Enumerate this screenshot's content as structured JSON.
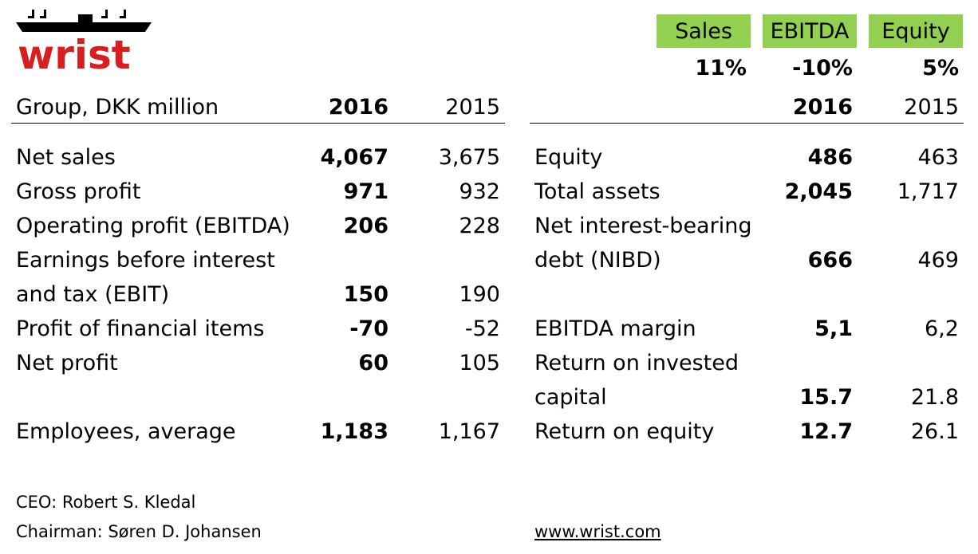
{
  "logo": {
    "text": "wrist",
    "color": "#d81e1e"
  },
  "kpis": [
    {
      "label": "Sales",
      "value": "11%"
    },
    {
      "label": "EBITDA",
      "value": "-10%"
    },
    {
      "label": "Equity",
      "value": "5%"
    }
  ],
  "kpi_color": "#92d050",
  "left_table": {
    "header": {
      "label": "Group, DKK million",
      "y2016": "2016",
      "y2015": "2015"
    },
    "rows": [
      {
        "label": "Net sales",
        "v2016": "4,067",
        "v2015": "3,675"
      },
      {
        "label": "Gross profit",
        "v2016": "971",
        "v2015": "932"
      },
      {
        "label": "Operating profit (EBITDA)",
        "v2016": "206",
        "v2015": "228"
      },
      {
        "label_line1": "Earnings before interest",
        "label_line2": "and tax (EBIT)",
        "v2016": "150",
        "v2015": "190"
      },
      {
        "label": "Profit of financial items",
        "v2016": "-70",
        "v2015": "-52"
      },
      {
        "label": "Net profit",
        "v2016": "60",
        "v2015": "105"
      },
      {
        "label": "Employees, average",
        "v2016": "1,183",
        "v2015": "1,167"
      }
    ]
  },
  "right_table": {
    "header": {
      "y2016": "2016",
      "y2015": "2015"
    },
    "rows": [
      {
        "label": "Equity",
        "v2016": "486",
        "v2015": "463"
      },
      {
        "label": "Total assets",
        "v2016": "2,045",
        "v2015": "1,717"
      },
      {
        "label_line1": "Net interest-bearing",
        "label_line2": "debt (NIBD)",
        "v2016": "666",
        "v2015": "469"
      },
      {
        "label": "EBITDA margin",
        "v2016": "5,1",
        "v2015": "6,2"
      },
      {
        "label_line1": "Return on invested",
        "label_line2": "capital",
        "v2016": "15.7",
        "v2015": "21.8"
      },
      {
        "label": "Return on equity",
        "v2016": "12.7",
        "v2015": "26.1"
      }
    ]
  },
  "footer": {
    "ceo": "CEO: Robert S. Kledal",
    "chairman": "Chairman: Søren D. Johansen",
    "website": "www.wrist.com"
  }
}
